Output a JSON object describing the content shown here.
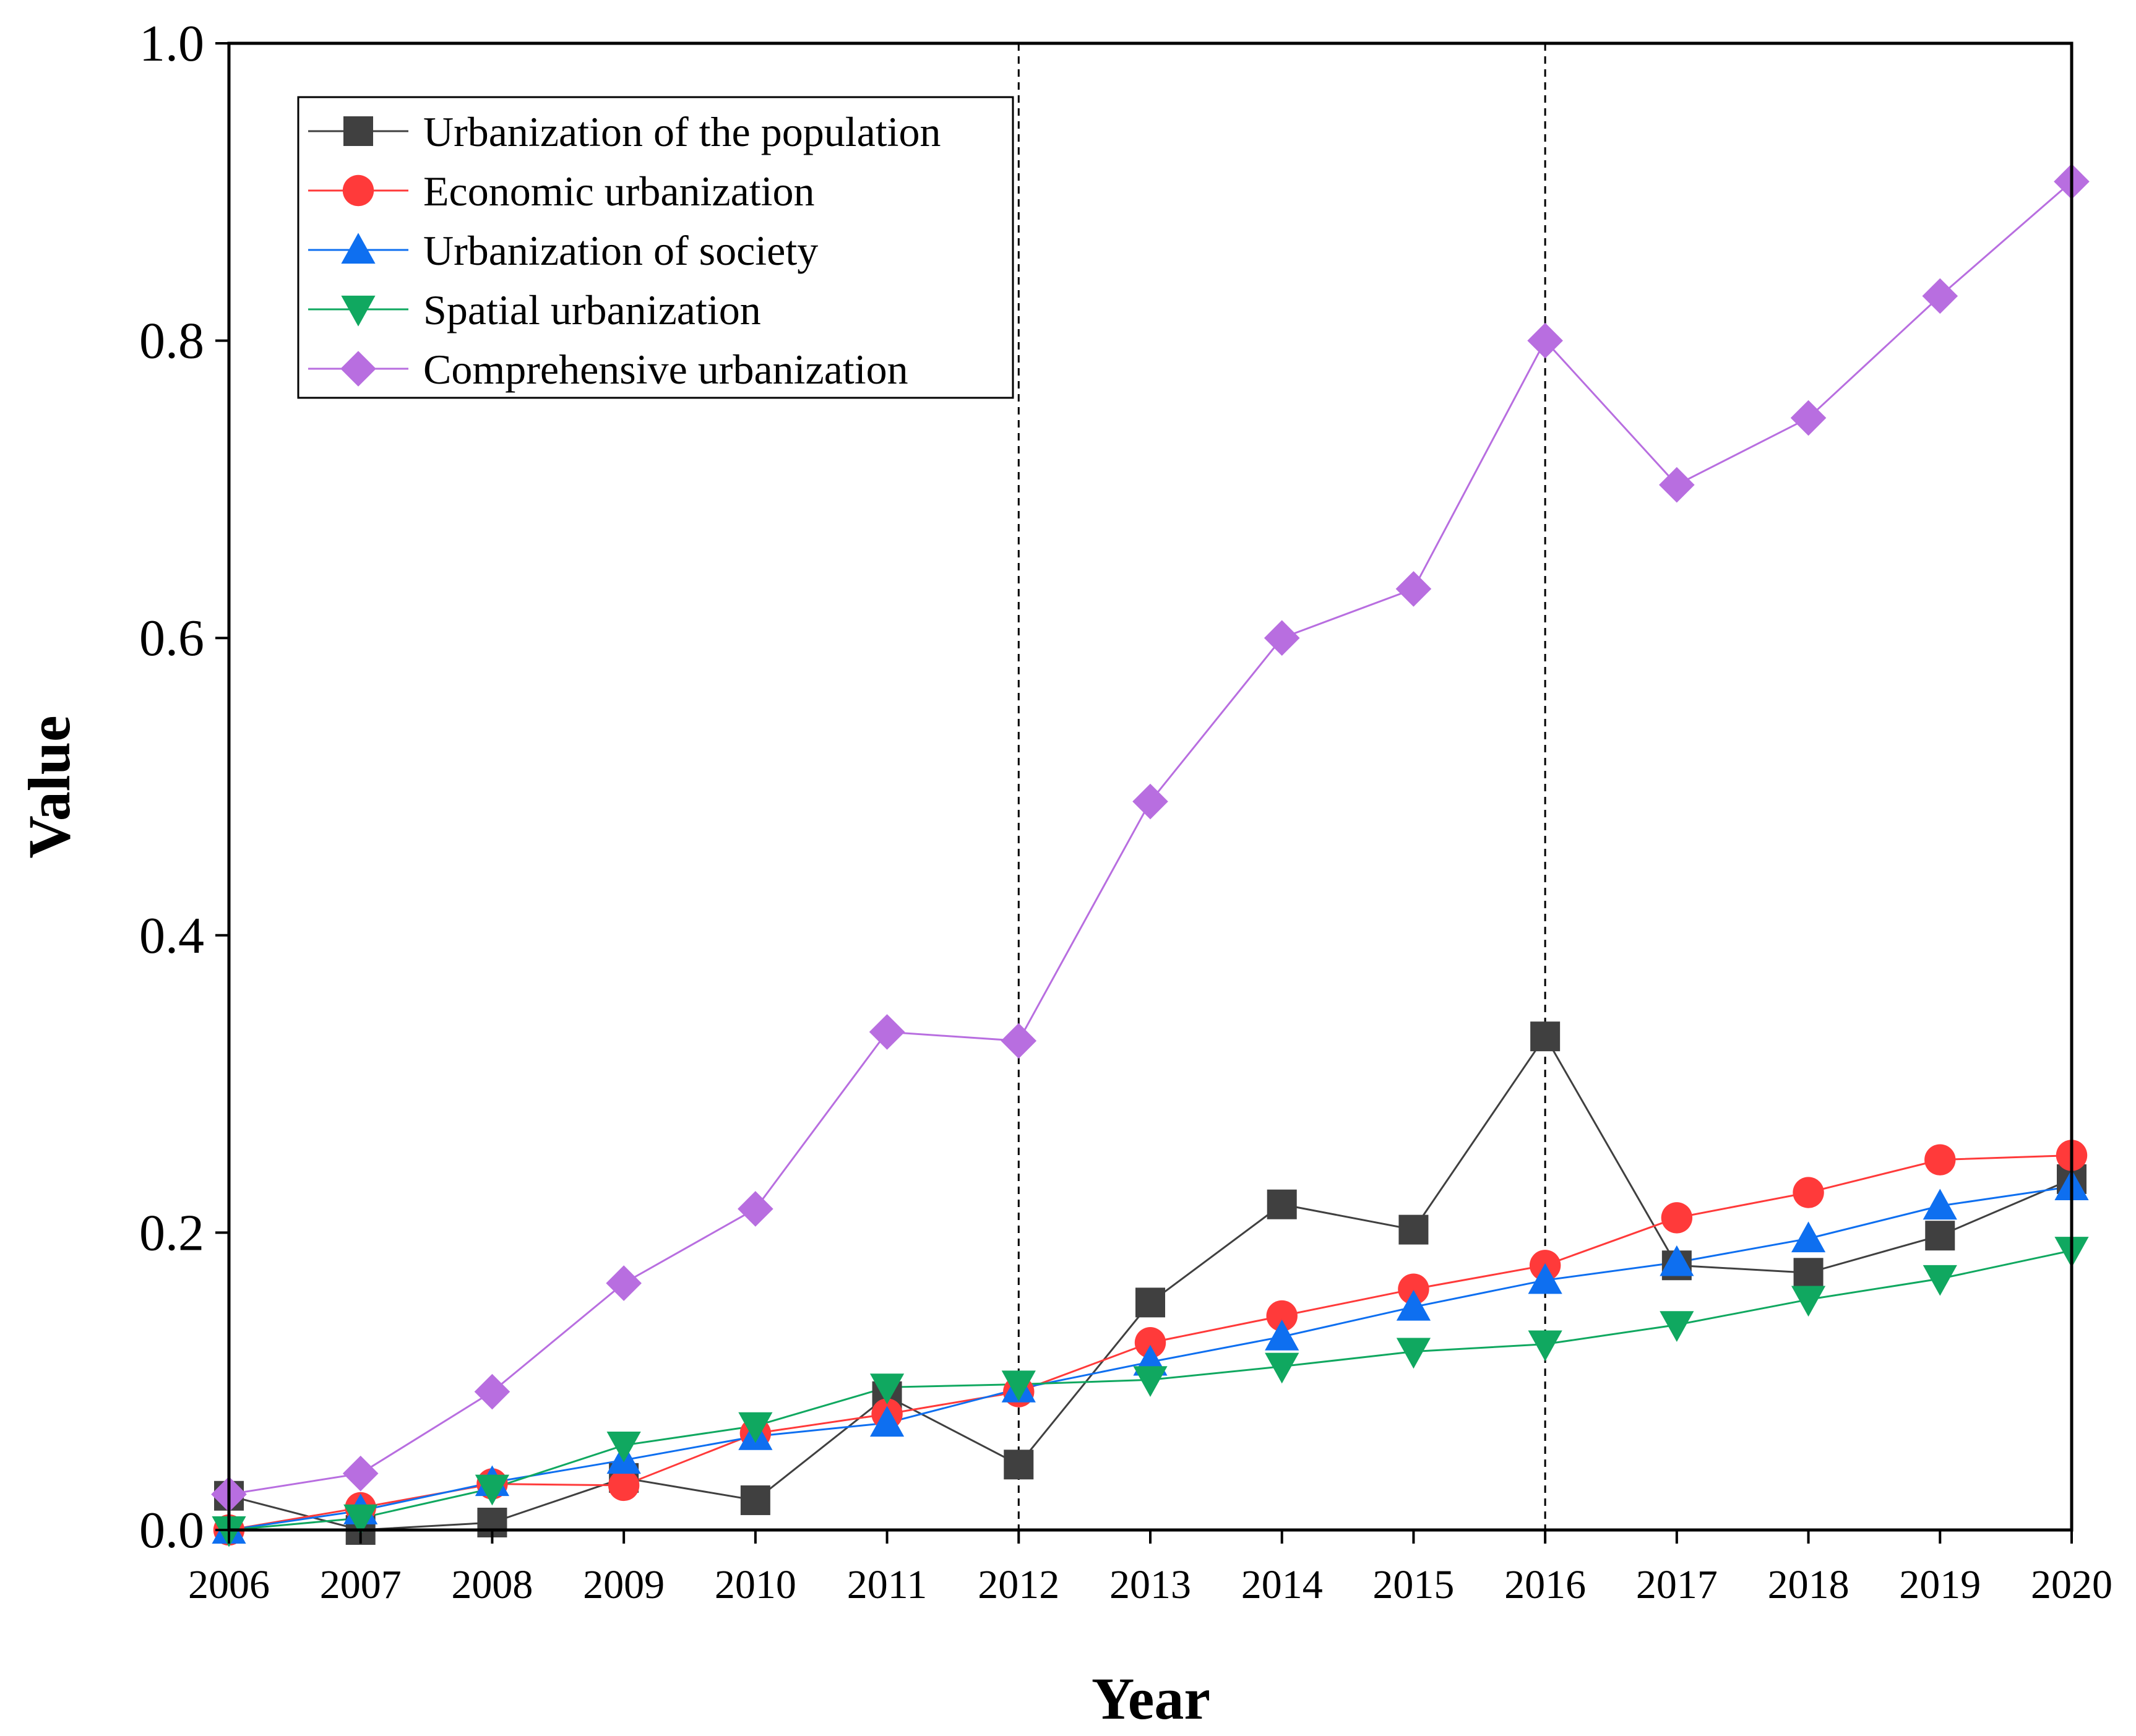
{
  "chart_data": {
    "type": "line",
    "title": "",
    "xlabel": "Year",
    "ylabel": "Value",
    "x": [
      "2006",
      "2007",
      "2008",
      "2009",
      "2010",
      "2011",
      "2012",
      "2013",
      "2014",
      "2015",
      "2016",
      "2017",
      "2018",
      "2019",
      "2020"
    ],
    "ylim": [
      0,
      1.0
    ],
    "yticks": [
      "0.0",
      "0.2",
      "0.4",
      "0.6",
      "0.8",
      "1.0"
    ],
    "ytick_values": [
      0,
      0.2,
      0.4,
      0.6,
      0.8,
      1.0
    ],
    "reference_lines_x": [
      "2012",
      "2016"
    ],
    "legend_position": "top-left",
    "grid": false,
    "series": [
      {
        "name": "Urbanization of the population",
        "color": "#404040",
        "marker": "square",
        "values": [
          0.023,
          0.0,
          0.005,
          0.035,
          0.02,
          0.09,
          0.044,
          0.153,
          0.219,
          0.202,
          0.332,
          0.178,
          0.173,
          0.198,
          0.236
        ]
      },
      {
        "name": "Economic urbanization",
        "color": "#ff3a3a",
        "marker": "circle",
        "values": [
          0.0,
          0.015,
          0.031,
          0.03,
          0.065,
          0.078,
          0.093,
          0.126,
          0.144,
          0.162,
          0.178,
          0.21,
          0.227,
          0.249,
          0.252
        ]
      },
      {
        "name": "Urbanization of society",
        "color": "#0e6ff0",
        "marker": "triangle-up",
        "values": [
          0.0,
          0.013,
          0.032,
          0.047,
          0.063,
          0.072,
          0.095,
          0.113,
          0.13,
          0.15,
          0.168,
          0.18,
          0.196,
          0.218,
          0.231
        ]
      },
      {
        "name": "Spatial urbanization",
        "color": "#10a860",
        "marker": "triangle-down",
        "values": [
          0.0,
          0.008,
          0.028,
          0.057,
          0.07,
          0.096,
          0.098,
          0.101,
          0.11,
          0.12,
          0.125,
          0.138,
          0.155,
          0.169,
          0.188
        ]
      },
      {
        "name": "Comprehensive urbanization",
        "color": "#b86ee0",
        "marker": "diamond",
        "values": [
          0.024,
          0.038,
          0.093,
          0.166,
          0.216,
          0.335,
          0.329,
          0.49,
          0.6,
          0.633,
          0.8,
          0.703,
          0.748,
          0.83,
          0.907
        ]
      }
    ]
  }
}
